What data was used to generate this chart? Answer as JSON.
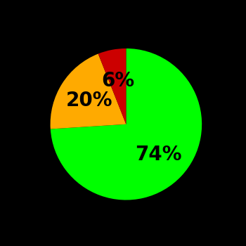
{
  "slices": [
    74,
    20,
    6
  ],
  "colors": [
    "#00ff00",
    "#ffaa00",
    "#cc0000"
  ],
  "labels": [
    "74%",
    "20%",
    "6%"
  ],
  "background_color": "#000000",
  "startangle": 90,
  "label_fontsize": 20,
  "label_fontweight": "bold",
  "label_color": "#000000"
}
